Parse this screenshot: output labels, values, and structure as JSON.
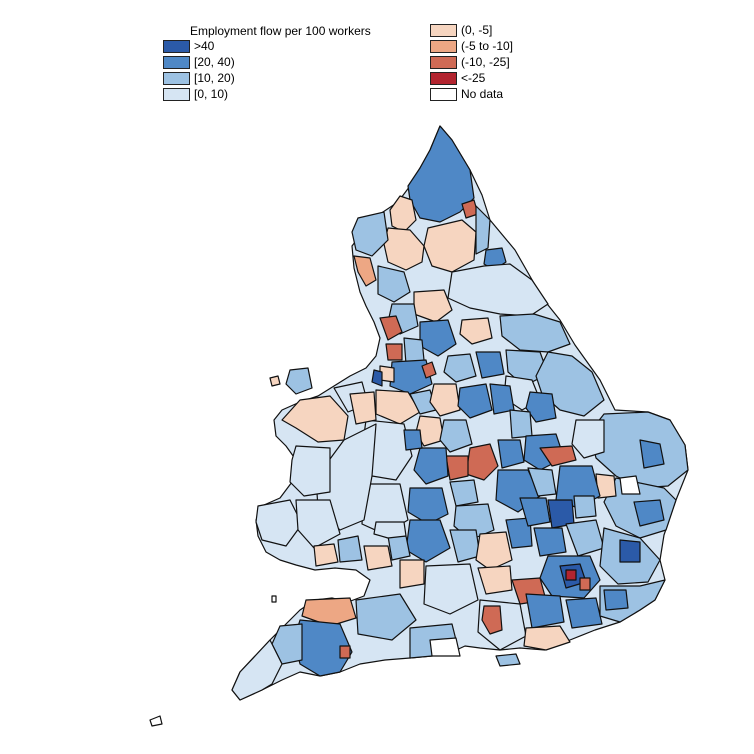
{
  "legend": {
    "title": "Employment flow per 100 workers",
    "positive": [
      {
        "label": ">40",
        "color": "#2b5aa8"
      },
      {
        "label": "[20, 40)",
        "color": "#4f88c6"
      },
      {
        "label": "[10, 20)",
        "color": "#9dc2e3"
      },
      {
        "label": "[0, 10)",
        "color": "#d6e5f3"
      }
    ],
    "negative": [
      {
        "label": "(0, -5]",
        "color": "#f6d5c0"
      },
      {
        "label": "(-5 to -10]",
        "color": "#eda784"
      },
      {
        "label": "(-10, -25]",
        "color": "#cf6a55"
      },
      {
        "label": "<-25",
        "color": "#b2242f"
      },
      {
        "label": "No data",
        "color": "#ffffff"
      }
    ]
  }
}
